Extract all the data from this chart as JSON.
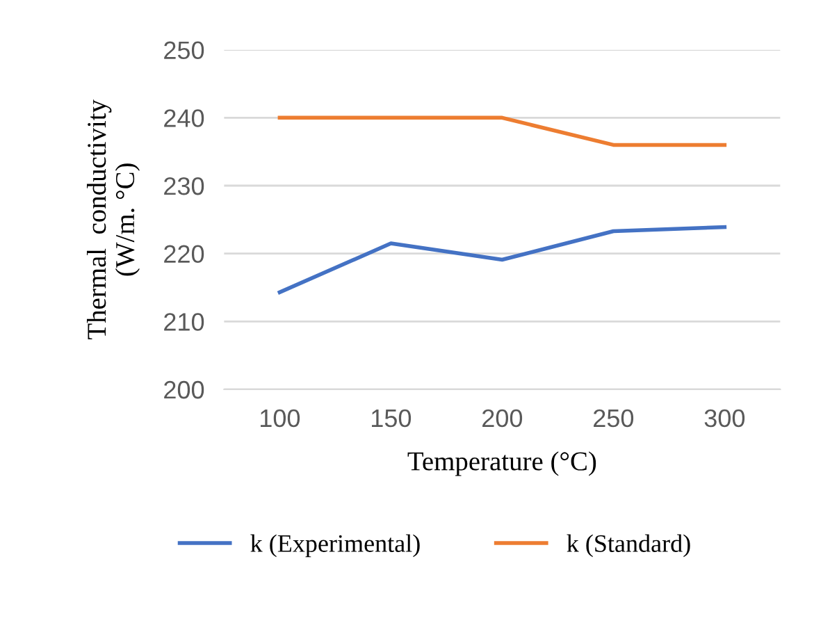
{
  "chart_data": {
    "type": "line",
    "xlabel": "Temperature (°C)",
    "ylabel": "Thermal  conductivity\n(W/m. °C)",
    "categories": [
      "100",
      "150",
      "200",
      "250",
      "300"
    ],
    "series": [
      {
        "name": "k (Experimental)",
        "color": "#4472c4",
        "values": [
          214.3,
          221.5,
          219.1,
          223.3,
          223.9
        ]
      },
      {
        "name": "k (Standard)",
        "color": "#ed7d31",
        "values": [
          240,
          240,
          240,
          236,
          236
        ]
      }
    ],
    "ylim": [
      200,
      250
    ],
    "yticks": [
      200,
      210,
      220,
      230,
      240,
      250
    ],
    "grid": "y",
    "legend": "bottom",
    "marker": "none",
    "line_style": "solid"
  }
}
